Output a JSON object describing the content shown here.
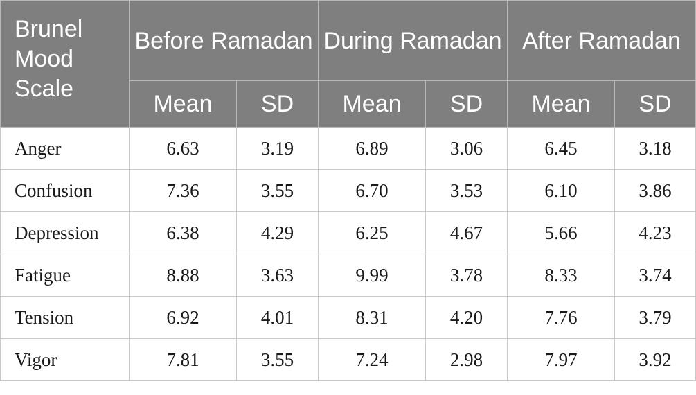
{
  "table": {
    "corner_header": "Brunel Mood Scale",
    "groups": [
      "Before Ramadan",
      "During Ramadan",
      "After Ramadan"
    ],
    "subheaders": [
      "Mean",
      "SD",
      "Mean",
      "SD",
      "Mean",
      "SD"
    ],
    "rows": [
      {
        "label": "Anger",
        "values": [
          "6.63",
          "3.19",
          "6.89",
          "3.06",
          "6.45",
          "3.18"
        ]
      },
      {
        "label": "Confusion",
        "values": [
          "7.36",
          "3.55",
          "6.70",
          "3.53",
          "6.10",
          "3.86"
        ]
      },
      {
        "label": "Depression",
        "values": [
          "6.38",
          "4.29",
          "6.25",
          "4.67",
          "5.66",
          "4.23"
        ]
      },
      {
        "label": "Fatigue",
        "values": [
          "8.88",
          "3.63",
          "9.99",
          "3.78",
          "8.33",
          "3.74"
        ]
      },
      {
        "label": "Tension",
        "values": [
          "6.92",
          "4.01",
          "8.31",
          "4.20",
          "7.76",
          "3.79"
        ]
      },
      {
        "label": "Vigor",
        "values": [
          "7.81",
          "3.55",
          "7.24",
          "2.98",
          "7.97",
          "3.92"
        ]
      }
    ]
  }
}
